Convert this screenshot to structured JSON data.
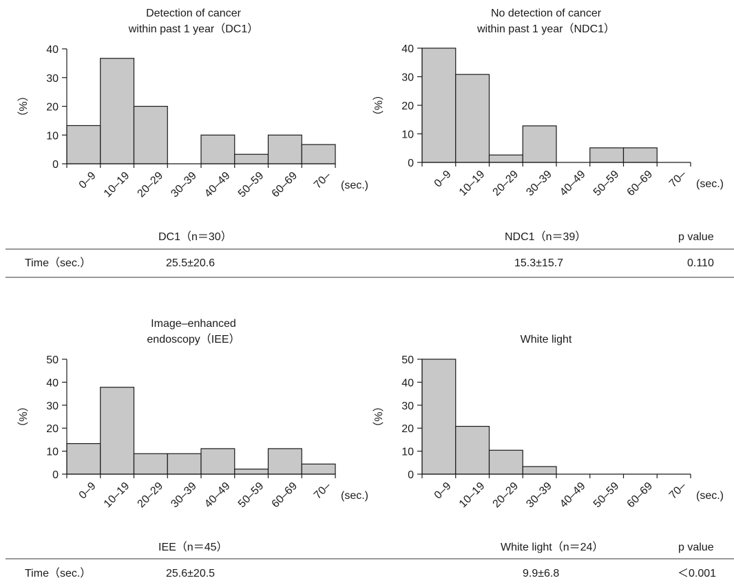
{
  "chart_data": [
    {
      "type": "bar",
      "title": [
        "Detection of cancer",
        "within past 1 year（DC1）"
      ],
      "ylabel": "（%）",
      "xunit": "(sec.)",
      "categories": [
        "0–9",
        "10–19",
        "20–29",
        "30–39",
        "40–49",
        "50–59",
        "60–69",
        "70–"
      ],
      "values": [
        13.3,
        36.7,
        20.0,
        0,
        10.0,
        3.3,
        10.0,
        6.7
      ],
      "ylim": [
        0,
        40
      ],
      "yticks": [
        0,
        10,
        20,
        30,
        40
      ]
    },
    {
      "type": "bar",
      "title": [
        "No detection of cancer",
        "within past 1 year（NDC1）"
      ],
      "ylabel": "（%）",
      "xunit": "(sec.)",
      "categories": [
        "0–9",
        "10–19",
        "20–29",
        "30–39",
        "40–49",
        "50–59",
        "60–69",
        "70–"
      ],
      "values": [
        40.0,
        30.8,
        2.6,
        12.8,
        0,
        5.1,
        5.1,
        0
      ],
      "ylim": [
        0,
        40
      ],
      "yticks": [
        0,
        10,
        20,
        30,
        40
      ]
    },
    {
      "type": "bar",
      "title": [
        "Image–enhanced",
        "endoscopy（IEE）"
      ],
      "ylabel": "（%）",
      "xunit": "(sec.)",
      "categories": [
        "0–9",
        "10–19",
        "20–29",
        "30–39",
        "40–49",
        "50–59",
        "60–69",
        "70–"
      ],
      "values": [
        13.3,
        37.8,
        8.9,
        8.9,
        11.1,
        2.2,
        11.1,
        4.4
      ],
      "ylim": [
        0,
        50
      ],
      "yticks": [
        0,
        10,
        20,
        30,
        40,
        50
      ]
    },
    {
      "type": "bar",
      "title": [
        "White light"
      ],
      "ylabel": "（%）",
      "xunit": "(sec.)",
      "categories": [
        "0–9",
        "10–19",
        "20–29",
        "30–39",
        "40–49",
        "50–59",
        "60–69",
        "70–"
      ],
      "values": [
        50.0,
        20.8,
        10.4,
        3.3,
        0,
        0,
        0,
        0
      ],
      "ylim": [
        0,
        50
      ],
      "yticks": [
        0,
        10,
        20,
        30,
        40,
        50
      ]
    }
  ],
  "tables": [
    {
      "group1": "DC1（n＝30）",
      "group2": "NDC1（n＝39）",
      "pheader": "p value",
      "rowlabel": "Time（sec.）",
      "value1": "25.5±20.6",
      "value2": "15.3±15.7",
      "pvalue": "0.110"
    },
    {
      "group1": "IEE（n＝45）",
      "group2": "White light（n＝24）",
      "pheader": "p value",
      "rowlabel": "Time（sec.）",
      "value1": "25.6±20.5",
      "value2": "9.9±6.8",
      "pvalue": "＜0.001"
    }
  ]
}
